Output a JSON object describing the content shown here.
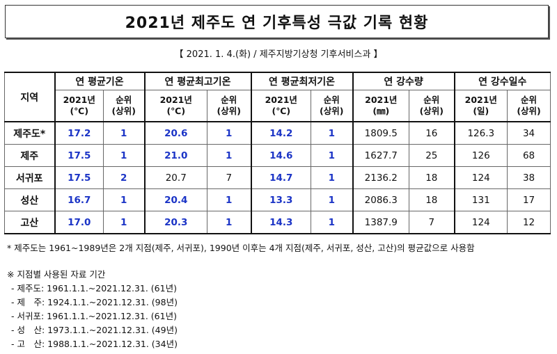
{
  "title": "2021년 제주도 연 기후특성 극값 기록 현황",
  "subtitle": "【 2021. 1. 4.(화) / 제주지방기상청 기후서비스과 】",
  "table": {
    "region_header": "지역",
    "groups": [
      {
        "label": "연 평균기온",
        "sub": [
          {
            "label": "2021년",
            "unit": "(℃)"
          },
          {
            "label": "순위",
            "unit": "(상위)"
          }
        ]
      },
      {
        "label": "연 평균최고기온",
        "sub": [
          {
            "label": "2021년",
            "unit": "(℃)"
          },
          {
            "label": "순위",
            "unit": "(상위)"
          }
        ]
      },
      {
        "label": "연 평균최저기온",
        "sub": [
          {
            "label": "2021년",
            "unit": "(℃)"
          },
          {
            "label": "순위",
            "unit": "(상위)"
          }
        ]
      },
      {
        "label": "연 강수량",
        "sub": [
          {
            "label": "2021년",
            "unit": "(㎜)"
          },
          {
            "label": "순위",
            "unit": "(상위)"
          }
        ]
      },
      {
        "label": "연 강수일수",
        "sub": [
          {
            "label": "2021년",
            "unit": "(일)"
          },
          {
            "label": "순위",
            "unit": "(상위)"
          }
        ]
      }
    ],
    "rows": [
      {
        "region": "제주도*",
        "cells": [
          "17.2",
          "1",
          "20.6",
          "1",
          "14.2",
          "1",
          "1809.5",
          "16",
          "126.3",
          "34"
        ],
        "highlight": [
          true,
          true,
          true,
          true,
          true,
          true,
          false,
          false,
          false,
          false
        ]
      },
      {
        "region": "제주",
        "cells": [
          "17.5",
          "1",
          "21.0",
          "1",
          "14.6",
          "1",
          "1627.7",
          "25",
          "126",
          "68"
        ],
        "highlight": [
          true,
          true,
          true,
          true,
          true,
          true,
          false,
          false,
          false,
          false
        ]
      },
      {
        "region": "서귀포",
        "cells": [
          "17.5",
          "2",
          "20.7",
          "7",
          "14.7",
          "1",
          "2136.2",
          "18",
          "124",
          "38"
        ],
        "highlight": [
          true,
          true,
          false,
          false,
          true,
          true,
          false,
          false,
          false,
          false
        ]
      },
      {
        "region": "성산",
        "cells": [
          "16.7",
          "1",
          "20.4",
          "1",
          "13.3",
          "1",
          "2086.3",
          "18",
          "131",
          "17"
        ],
        "highlight": [
          true,
          true,
          true,
          true,
          true,
          true,
          false,
          false,
          false,
          false
        ]
      },
      {
        "region": "고산",
        "cells": [
          "17.0",
          "1",
          "20.3",
          "1",
          "14.3",
          "1",
          "1387.9",
          "7",
          "124",
          "12"
        ],
        "highlight": [
          true,
          true,
          true,
          true,
          true,
          true,
          false,
          false,
          false,
          false
        ]
      }
    ]
  },
  "footnote": "* 제주도는 1961~1989년은 2개 지점(제주, 서귀포), 1990년 이후는 4개 지점(제주, 서귀포, 성산, 고산)의 평균값으로 사용함",
  "period_title": "※ 지점별 사용된 자료 기간",
  "periods": [
    "- 제주도: 1961.1.1.~2021.12.31. (61년)",
    "- 제　주: 1924.1.1.~2021.12.31. (98년)",
    "- 서귀포: 1961.1.1.~2021.12.31. (61년)",
    "- 성　산: 1973.1.1.~2021.12.31. (49년)",
    "- 고　산: 1988.1.1.~2021.12.31. (34년)"
  ],
  "colors": {
    "highlight": "#1a33c6"
  }
}
